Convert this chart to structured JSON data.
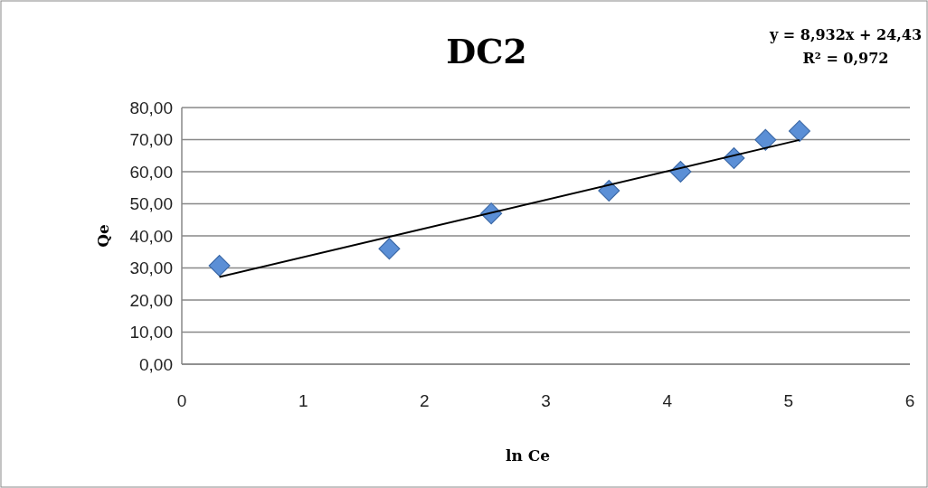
{
  "chart_data": {
    "type": "scatter",
    "title": "DC2",
    "xlabel": "ln Ce",
    "ylabel": "Qe",
    "annotations": [
      "y = 8,932x + 24,43",
      "R² = 0,972"
    ],
    "xlim": [
      0,
      6
    ],
    "xticks": [
      0,
      1,
      2,
      3,
      4,
      5,
      6
    ],
    "ylim": [
      0,
      80
    ],
    "yticks": [
      {
        "value": 0,
        "label": "0,00"
      },
      {
        "value": 10,
        "label": "10,00"
      },
      {
        "value": 20,
        "label": "20,00"
      },
      {
        "value": 30,
        "label": "30,00"
      },
      {
        "value": 40,
        "label": "40,00"
      },
      {
        "value": 50,
        "label": "50,00"
      },
      {
        "value": 60,
        "label": "60,00"
      },
      {
        "value": 70,
        "label": "70,00"
      },
      {
        "value": 80,
        "label": "80,00"
      }
    ],
    "grid": "y",
    "marker": "diamond",
    "series": [
      {
        "color": "#5b8fd6",
        "x": [
          0.31,
          1.71,
          2.55,
          3.52,
          4.11,
          4.55,
          4.81,
          5.09
        ],
        "values": [
          30.7,
          36.0,
          47.0,
          54.1,
          60.0,
          64.2,
          69.9,
          72.7
        ]
      },
      {
        "type": "line",
        "color": "#000000",
        "marker": "none",
        "line_style": "solid",
        "x": [
          0.31,
          5.09
        ],
        "values": [
          27.2,
          69.9
        ]
      }
    ]
  }
}
